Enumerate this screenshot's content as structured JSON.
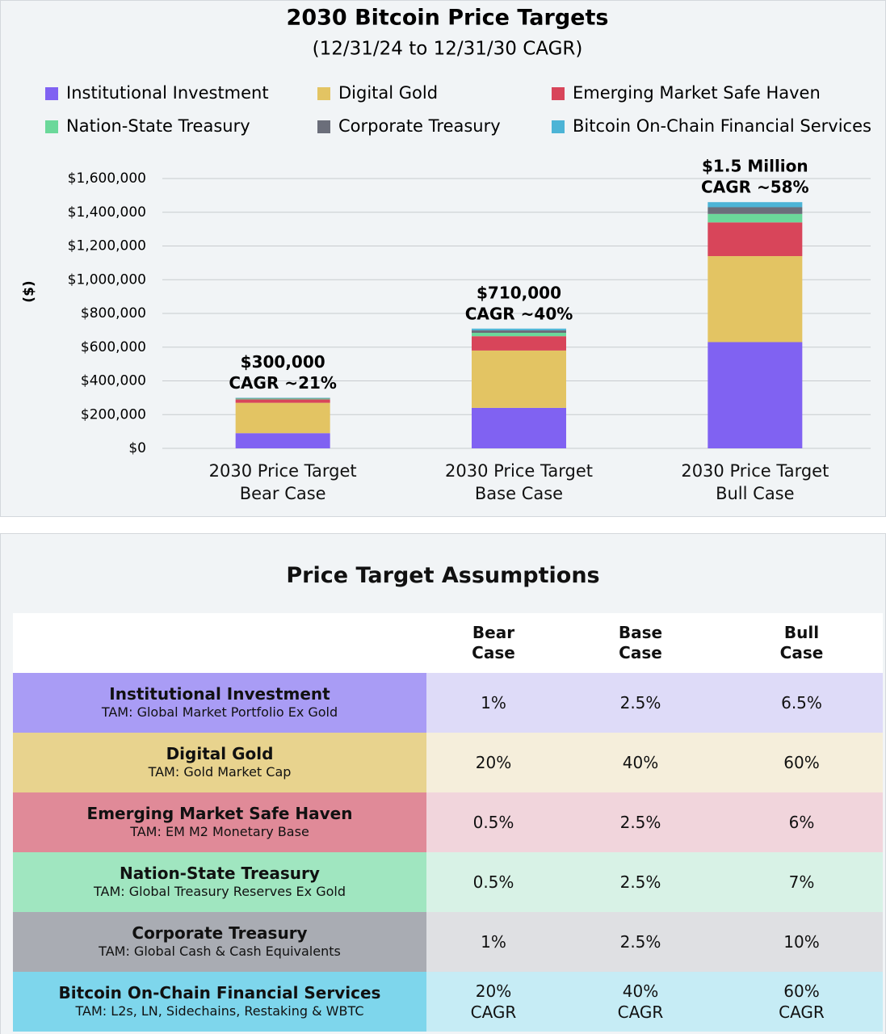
{
  "chart_data": {
    "type": "stacked_bar",
    "title": "2030 Bitcoin Price Targets",
    "subtitle": "(12/31/24 to 12/31/30 CAGR)",
    "ylabel": "($)",
    "categories": [
      "2030 Price Target\nBear Case",
      "2030 Price Target\nBase Case",
      "2030 Price Target\nBull Case"
    ],
    "annotations": [
      [
        "$300,000",
        "CAGR ~21%"
      ],
      [
        "$710,000",
        "CAGR ~40%"
      ],
      [
        "$1.5 Million",
        "CAGR ~58%"
      ]
    ],
    "series": [
      {
        "name": "Institutional Investment",
        "color": "#8062f2",
        "values": [
          90000,
          240000,
          630000
        ]
      },
      {
        "name": "Digital Gold",
        "color": "#e3c463",
        "values": [
          180000,
          340000,
          510000
        ]
      },
      {
        "name": "Emerging Market Safe Haven",
        "color": "#d8455a",
        "values": [
          20000,
          85000,
          200000
        ]
      },
      {
        "name": "Nation-State Treasury",
        "color": "#6bd89a",
        "values": [
          5000,
          20000,
          50000
        ]
      },
      {
        "name": "Corporate Treasury",
        "color": "#6b6e7a",
        "values": [
          3000,
          15000,
          40000
        ]
      },
      {
        "name": "Bitcoin On-Chain Financial Services",
        "color": "#4cb4d6",
        "values": [
          2000,
          10000,
          30000
        ]
      }
    ],
    "ylim": [
      0,
      1600000
    ],
    "yticks": [
      {
        "value": 0,
        "label": "$0"
      },
      {
        "value": 200000,
        "label": "$200,000"
      },
      {
        "value": 400000,
        "label": "$400,000"
      },
      {
        "value": 600000,
        "label": "$600,000"
      },
      {
        "value": 800000,
        "label": "$800,000"
      },
      {
        "value": 1000000,
        "label": "$1,000,000"
      },
      {
        "value": 1200000,
        "label": "$1,200,000"
      },
      {
        "value": 1400000,
        "label": "$1,400,000"
      },
      {
        "value": 1600000,
        "label": "$1,600,000"
      }
    ],
    "grid": true
  },
  "table": {
    "title": "Price Target Assumptions",
    "columns": [
      "Bear\nCase",
      "Base\nCase",
      "Bull\nCase"
    ],
    "rows": [
      {
        "name": "Institutional Investment",
        "tam": "TAM: Global Market Portfolio Ex Gold",
        "values": [
          "1%",
          "2.5%",
          "6.5%"
        ]
      },
      {
        "name": "Digital Gold",
        "tam": "TAM: Gold Market Cap",
        "values": [
          "20%",
          "40%",
          "60%"
        ]
      },
      {
        "name": "Emerging Market Safe Haven",
        "tam": "TAM: EM M2 Monetary Base",
        "values": [
          "0.5%",
          "2.5%",
          "6%"
        ]
      },
      {
        "name": "Nation-State Treasury",
        "tam": "TAM: Global Treasury Reserves Ex Gold",
        "values": [
          "0.5%",
          "2.5%",
          "7%"
        ]
      },
      {
        "name": "Corporate Treasury",
        "tam": "TAM: Global Cash & Cash Equivalents",
        "values": [
          "1%",
          "2.5%",
          "10%"
        ]
      },
      {
        "name": "Bitcoin On-Chain Financial Services",
        "tam": "TAM: L2s, LN, Sidechains, Restaking & WBTC",
        "values": [
          "20%\nCAGR",
          "40%\nCAGR",
          "60%\nCAGR"
        ]
      }
    ]
  }
}
